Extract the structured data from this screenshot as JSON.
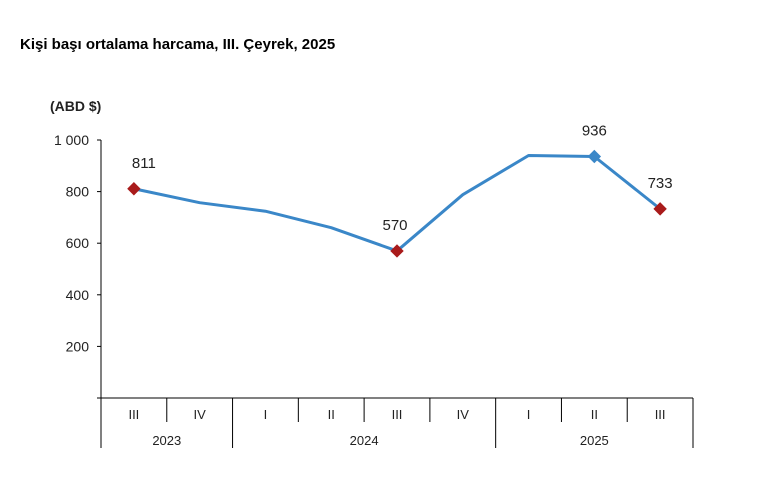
{
  "title": "Kişi başı ortalama harcama, III. Çeyrek, 2025",
  "chart_data": {
    "type": "line",
    "title": "Kişi başı ortalama harcama, III. Çeyrek, 2025",
    "ylabel": "(ABD $)",
    "xlabel": "",
    "ylim": [
      0,
      1000
    ],
    "yticks": [
      200,
      400,
      600,
      800,
      1000
    ],
    "ytick_labels": [
      "200",
      "400",
      "600",
      "800",
      "1 000"
    ],
    "categories": [
      "III",
      "IV",
      "I",
      "II",
      "III",
      "IV",
      "I",
      "II",
      "III"
    ],
    "groups": [
      {
        "label": "2023",
        "span": 2
      },
      {
        "label": "2024",
        "span": 4
      },
      {
        "label": "2025",
        "span": 3
      }
    ],
    "series": [
      {
        "values": [
          811,
          757,
          724,
          660,
          570,
          788,
          940,
          936,
          733
        ],
        "labeled_points": [
          0,
          4,
          7,
          8
        ],
        "data_labels": [
          "811",
          "570",
          "936",
          "733"
        ]
      }
    ],
    "line_color": "#3a87c8",
    "marker_color": "#a91b1b",
    "grid": false,
    "legend": "none"
  }
}
